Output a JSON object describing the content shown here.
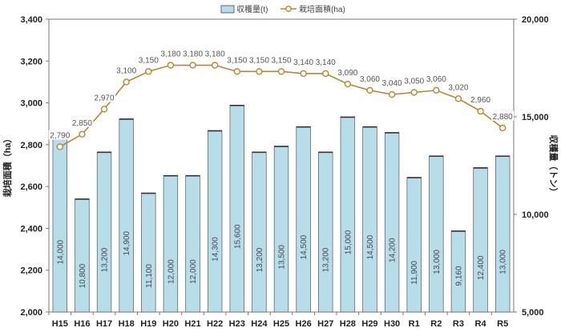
{
  "chart_data": {
    "type": "bar+line",
    "categories": [
      "H15",
      "H16",
      "H17",
      "H18",
      "H19",
      "H20",
      "H21",
      "H22",
      "H23",
      "H24",
      "H25",
      "H26",
      "H27",
      "H28",
      "H29",
      "H30",
      "R1",
      "R2",
      "R3",
      "R4",
      "R5"
    ],
    "series": [
      {
        "name": "収穫量(t)",
        "type": "bar",
        "axis": "right",
        "color": "#b7dde8",
        "values": [
          14000,
          10800,
          13200,
          14900,
          11100,
          12000,
          12000,
          14300,
          15600,
          13200,
          13500,
          14500,
          13200,
          15000,
          14500,
          14200,
          11900,
          13000,
          9160,
          12400,
          13000
        ],
        "labels": [
          "14,000",
          "10,800",
          "13,200",
          "14,900",
          "11,100",
          "12,000",
          "12,000",
          "14,300",
          "15,600",
          "13,200",
          "13,500",
          "14,500",
          "13,200",
          "15,000",
          "14,500",
          "14,200",
          "11,900",
          "13,000",
          "9,160",
          "12,400",
          "13,000"
        ]
      },
      {
        "name": "栽培面積(ha)",
        "type": "line",
        "axis": "left",
        "color": "#b8862e",
        "values": [
          2790,
          2850,
          2970,
          3100,
          3150,
          3180,
          3180,
          3180,
          3150,
          3150,
          3150,
          3140,
          3140,
          3090,
          3060,
          3040,
          3050,
          3060,
          3020,
          2960,
          2880
        ],
        "labels": [
          "2,790",
          "2,850",
          "2,970",
          "3,100",
          "3,150",
          "3,180",
          "3,180",
          "3,180",
          "3,150",
          "3,150",
          "3,150",
          "3,140",
          "3,140",
          "3,090",
          "3,060",
          "3,040",
          "3,050",
          "3,060",
          "3,020",
          "2,960",
          "2,880"
        ]
      }
    ],
    "left_axis": {
      "label": "栽培面積（ha）",
      "ylim": [
        2000,
        3400
      ],
      "ticks": [
        "2,000",
        "2,200",
        "2,400",
        "2,600",
        "2,800",
        "3,000",
        "3,200",
        "3,400"
      ],
      "tick_values": [
        2000,
        2200,
        2400,
        2600,
        2800,
        3000,
        3200,
        3400
      ]
    },
    "right_axis": {
      "label": "収穫量（トン）",
      "ylim": [
        5000,
        20000
      ],
      "ticks": [
        "5,000",
        "10,000",
        "15,000",
        "20,000"
      ],
      "tick_values": [
        5000,
        10000,
        15000,
        20000
      ]
    },
    "legend": {
      "position": "top",
      "items": [
        "収穫量(t)",
        "栽培面積(ha)"
      ]
    },
    "grid": false
  }
}
